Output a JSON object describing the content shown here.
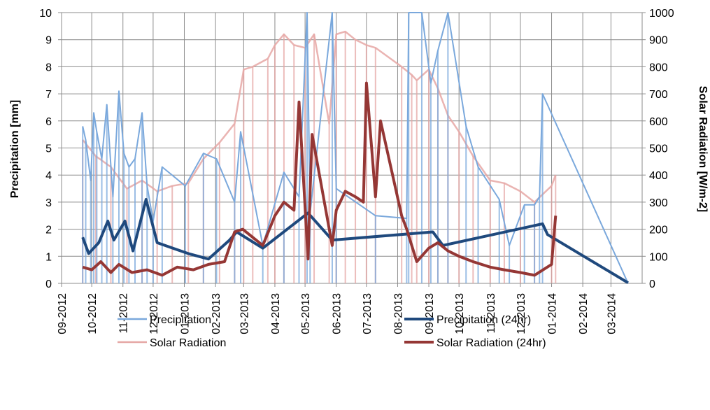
{
  "chart_data": {
    "type": "line",
    "xlabel": "",
    "ylabel": "Precipitation [mm]",
    "y2label": "Solar Radiation [W/m-2]",
    "ylim": [
      0,
      10
    ],
    "y2lim": [
      0,
      1000
    ],
    "yticks": [
      "0",
      "1",
      "2",
      "3",
      "4",
      "5",
      "6",
      "7",
      "8",
      "9",
      "10"
    ],
    "y2ticks": [
      "0",
      "100",
      "200",
      "300",
      "400",
      "500",
      "600",
      "700",
      "800",
      "900",
      "1000"
    ],
    "xticks": [
      "09-2012",
      "10-2012",
      "11-2012",
      "12-2012",
      "01-2013",
      "02-2013",
      "03-2013",
      "04-2013",
      "05-2013",
      "06-2013",
      "07-2013",
      "08-2013",
      "09-2013",
      "10-2013",
      "11-2013",
      "12-2013",
      "01-2014",
      "02-2014",
      "03-2014"
    ],
    "xlim": [
      "2012-09-01",
      "2014-04-01"
    ],
    "grid": true,
    "legend_position": "bottom",
    "series": [
      {
        "name": "Precipitation",
        "axis": "left",
        "color": "#7aa8dc",
        "x": [
          "2012-09-22",
          "2012-09-25",
          "2012-09-30",
          "2012-10-03",
          "2012-10-06",
          "2012-10-11",
          "2012-10-16",
          "2012-10-22",
          "2012-10-28",
          "2012-11-02",
          "2012-11-07",
          "2012-11-13",
          "2012-11-20",
          "2012-11-25",
          "2012-12-01",
          "2012-12-10",
          "2013-01-02",
          "2013-01-20",
          "2013-02-02",
          "2013-02-20",
          "2013-02-26",
          "2013-03-20",
          "2013-04-10",
          "2013-04-25",
          "2013-05-03",
          "2013-05-06",
          "2013-05-28",
          "2013-06-01",
          "2013-07-10",
          "2013-08-10",
          "2013-08-12",
          "2013-08-25",
          "2013-09-03",
          "2013-09-10",
          "2013-09-20",
          "2013-10-08",
          "2013-10-20",
          "2013-11-10",
          "2013-11-20",
          "2013-12-05",
          "2013-12-15",
          "2013-12-20",
          "2013-12-23",
          "2014-03-18"
        ],
        "values": [
          5.8,
          5.3,
          3.8,
          6.3,
          5.6,
          4.6,
          6.6,
          3.2,
          7.1,
          4.8,
          4.3,
          4.6,
          6.3,
          3.6,
          2.3,
          4.3,
          3.6,
          4.8,
          4.6,
          3.0,
          5.6,
          1.4,
          4.1,
          3.2,
          12.0,
          2.6,
          12.0,
          3.5,
          2.5,
          2.4,
          12.0,
          12.0,
          7.4,
          8.6,
          12.0,
          5.8,
          4.3,
          3.1,
          1.4,
          2.9,
          2.9,
          3.2,
          7.0,
          0.0
        ]
      },
      {
        "name": "Precipitation (24hr)",
        "axis": "left",
        "color": "#1f497d",
        "x": [
          "2012-09-22",
          "2012-09-28",
          "2012-10-08",
          "2012-10-17",
          "2012-10-23",
          "2012-11-03",
          "2012-11-11",
          "2012-11-24",
          "2012-12-05",
          "2013-01-05",
          "2013-01-25",
          "2013-02-15",
          "2013-02-22",
          "2013-03-20",
          "2013-05-04",
          "2013-05-28",
          "2013-09-05",
          "2013-09-15",
          "2013-12-23",
          "2013-12-28",
          "2014-03-18"
        ],
        "values": [
          1.7,
          1.1,
          1.5,
          2.3,
          1.6,
          2.3,
          1.2,
          3.1,
          1.5,
          1.1,
          0.9,
          1.6,
          1.9,
          1.3,
          2.6,
          1.6,
          1.9,
          1.4,
          2.2,
          1.8,
          0.02
        ]
      },
      {
        "name": "Solar Radiation",
        "axis": "right",
        "color": "#e6a7a5",
        "x": [
          "2012-09-22",
          "2012-10-05",
          "2012-10-20",
          "2012-11-05",
          "2012-11-20",
          "2012-12-05",
          "2012-12-20",
          "2013-01-05",
          "2013-01-20",
          "2013-02-05",
          "2013-02-20",
          "2013-03-01",
          "2013-03-10",
          "2013-03-25",
          "2013-04-01",
          "2013-04-10",
          "2013-04-20",
          "2013-05-01",
          "2013-05-10",
          "2013-05-25",
          "2013-06-01",
          "2013-06-10",
          "2013-06-20",
          "2013-07-01",
          "2013-07-10",
          "2013-08-05",
          "2013-08-15",
          "2013-08-20",
          "2013-09-01",
          "2013-09-10",
          "2013-09-20",
          "2013-10-01",
          "2013-10-15",
          "2013-11-01",
          "2013-11-15",
          "2013-12-01",
          "2013-12-15",
          "2014-01-01",
          "2014-01-05"
        ],
        "values": [
          530,
          470,
          430,
          350,
          380,
          340,
          360,
          370,
          460,
          520,
          590,
          790,
          800,
          830,
          880,
          920,
          880,
          870,
          920,
          590,
          920,
          930,
          900,
          880,
          870,
          800,
          770,
          750,
          790,
          720,
          620,
          560,
          470,
          380,
          370,
          340,
          300,
          360,
          400
        ]
      },
      {
        "name": "Solar Radiation (24hr)",
        "axis": "right",
        "color": "#953735",
        "x": [
          "2012-09-22",
          "2012-10-01",
          "2012-10-10",
          "2012-10-20",
          "2012-10-28",
          "2012-11-10",
          "2012-11-25",
          "2012-12-10",
          "2012-12-25",
          "2013-01-10",
          "2013-01-25",
          "2013-02-10",
          "2013-02-20",
          "2013-02-28",
          "2013-03-20",
          "2013-04-01",
          "2013-04-10",
          "2013-04-20",
          "2013-04-25",
          "2013-05-04",
          "2013-05-06",
          "2013-05-08",
          "2013-05-28",
          "2013-06-01",
          "2013-06-10",
          "2013-06-20",
          "2013-06-28",
          "2013-07-01",
          "2013-07-10",
          "2013-07-15",
          "2013-08-05",
          "2013-08-10",
          "2013-08-20",
          "2013-09-01",
          "2013-09-10",
          "2013-09-20",
          "2013-10-01",
          "2013-10-15",
          "2013-11-01",
          "2013-11-15",
          "2013-12-01",
          "2013-12-15",
          "2014-01-01",
          "2014-01-05"
        ],
        "values": [
          60,
          50,
          80,
          40,
          70,
          40,
          50,
          30,
          60,
          50,
          70,
          80,
          190,
          200,
          140,
          250,
          300,
          270,
          670,
          90,
          340,
          550,
          140,
          270,
          340,
          320,
          300,
          740,
          320,
          600,
          250,
          200,
          80,
          130,
          150,
          120,
          100,
          80,
          60,
          50,
          40,
          30,
          70,
          250
        ]
      }
    ]
  }
}
